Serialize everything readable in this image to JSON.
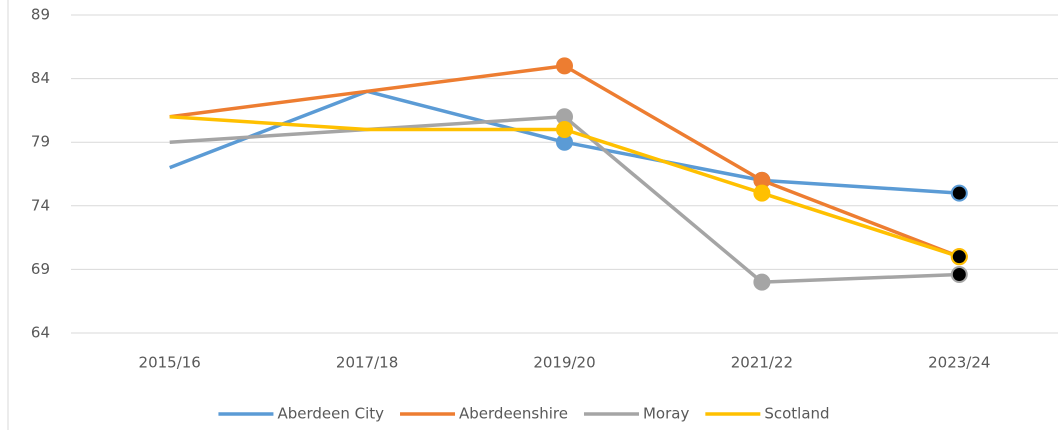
{
  "chart_data": {
    "type": "line",
    "categories": [
      "2015/16",
      "2017/18",
      "2019/20",
      "2021/22",
      "2023/24"
    ],
    "series": [
      {
        "name": "Aberdeen City",
        "color": "#5b9bd5",
        "values": [
          77,
          83,
          79,
          76,
          75
        ]
      },
      {
        "name": "Aberdeenshire",
        "color": "#ed7d31",
        "values": [
          81,
          83,
          85,
          76,
          70
        ]
      },
      {
        "name": "Moray",
        "color": "#a5a5a5",
        "values": [
          79,
          80,
          81,
          68,
          68.6
        ]
      },
      {
        "name": "Scotland",
        "color": "#ffc000",
        "values": [
          81,
          80,
          80,
          75,
          70
        ]
      }
    ],
    "ylim": [
      64,
      89
    ],
    "yticks": [
      64,
      69,
      74,
      79,
      84,
      89
    ],
    "grid": true,
    "legend": "bottom"
  }
}
